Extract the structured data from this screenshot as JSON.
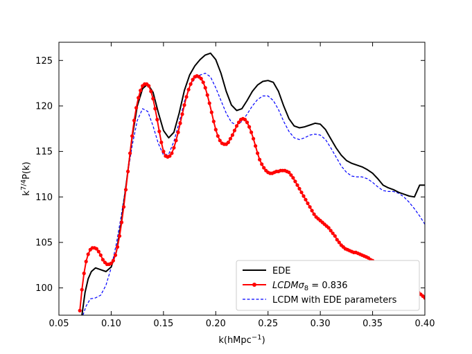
{
  "chart_data": {
    "type": "line",
    "xlabel_base": "k(hMpc",
    "xlabel_sup": "−1",
    "xlabel_close": ")",
    "ylabel_base": "k",
    "ylabel_sup": "7/4",
    "ylabel_rest": "P(k)",
    "xlim": [
      0.05,
      0.4
    ],
    "ylim": [
      97,
      127
    ],
    "xticks": [
      0.05,
      0.1,
      0.15,
      0.2,
      0.25,
      0.3,
      0.35,
      0.4
    ],
    "xtick_labels": [
      "0.05",
      "0.10",
      "0.15",
      "0.20",
      "0.25",
      "0.30",
      "0.35",
      "0.40"
    ],
    "yticks": [
      100,
      105,
      110,
      115,
      120,
      125
    ],
    "ytick_labels": [
      "100",
      "105",
      "110",
      "115",
      "120",
      "125"
    ],
    "grid": false,
    "legend_position": "lower-right",
    "series": [
      {
        "name": "EDE",
        "legend_label": "EDE",
        "color": "#000000",
        "style": "solid",
        "markers": false,
        "x": [
          0.072,
          0.075,
          0.078,
          0.081,
          0.085,
          0.09,
          0.095,
          0.1,
          0.105,
          0.11,
          0.115,
          0.12,
          0.125,
          0.13,
          0.135,
          0.14,
          0.145,
          0.15,
          0.155,
          0.16,
          0.165,
          0.17,
          0.175,
          0.18,
          0.185,
          0.19,
          0.195,
          0.2,
          0.205,
          0.21,
          0.215,
          0.22,
          0.225,
          0.23,
          0.235,
          0.24,
          0.245,
          0.25,
          0.255,
          0.26,
          0.265,
          0.27,
          0.275,
          0.28,
          0.285,
          0.29,
          0.295,
          0.3,
          0.305,
          0.31,
          0.315,
          0.32,
          0.325,
          0.33,
          0.335,
          0.34,
          0.345,
          0.35,
          0.355,
          0.36,
          0.365,
          0.37,
          0.375,
          0.38,
          0.385,
          0.39,
          0.395,
          0.4
        ],
        "y": [
          97.0,
          99.5,
          101.0,
          101.8,
          102.2,
          102.0,
          101.8,
          102.3,
          104.0,
          107.5,
          112.0,
          116.5,
          120.0,
          121.9,
          122.4,
          121.5,
          119.3,
          117.3,
          116.5,
          117.1,
          119.2,
          121.7,
          123.4,
          124.4,
          125.1,
          125.6,
          125.8,
          125.1,
          123.6,
          121.6,
          120.1,
          119.5,
          119.7,
          120.6,
          121.6,
          122.3,
          122.7,
          122.8,
          122.6,
          121.6,
          120.0,
          118.6,
          117.8,
          117.6,
          117.7,
          117.9,
          118.1,
          118.0,
          117.4,
          116.4,
          115.4,
          114.6,
          114.0,
          113.7,
          113.5,
          113.3,
          113.0,
          112.6,
          112.0,
          111.3,
          111.0,
          110.8,
          110.5,
          110.3,
          110.1,
          110.0,
          111.3,
          111.3
        ]
      },
      {
        "name": "LCDM σ8 = 0.836",
        "legend_label": "LCDMσ",
        "legend_sub": "8",
        "legend_rest": " = 0.836",
        "color": "#ff0000",
        "style": "solid",
        "markers": true,
        "x": [
          0.07,
          0.072,
          0.074,
          0.076,
          0.078,
          0.08,
          0.082,
          0.084,
          0.086,
          0.088,
          0.09,
          0.092,
          0.094,
          0.096,
          0.098,
          0.1,
          0.102,
          0.104,
          0.106,
          0.108,
          0.11,
          0.112,
          0.114,
          0.116,
          0.118,
          0.12,
          0.122,
          0.124,
          0.126,
          0.128,
          0.13,
          0.132,
          0.134,
          0.136,
          0.138,
          0.14,
          0.142,
          0.144,
          0.146,
          0.148,
          0.15,
          0.152,
          0.154,
          0.156,
          0.158,
          0.16,
          0.162,
          0.164,
          0.166,
          0.168,
          0.17,
          0.172,
          0.174,
          0.176,
          0.178,
          0.18,
          0.182,
          0.184,
          0.186,
          0.188,
          0.19,
          0.192,
          0.194,
          0.196,
          0.198,
          0.2,
          0.202,
          0.204,
          0.206,
          0.208,
          0.21,
          0.212,
          0.214,
          0.216,
          0.218,
          0.22,
          0.222,
          0.224,
          0.226,
          0.228,
          0.23,
          0.232,
          0.234,
          0.236,
          0.238,
          0.24,
          0.242,
          0.244,
          0.246,
          0.248,
          0.25,
          0.252,
          0.254,
          0.256,
          0.258,
          0.26,
          0.262,
          0.264,
          0.266,
          0.268,
          0.27,
          0.272,
          0.274,
          0.276,
          0.278,
          0.28,
          0.282,
          0.284,
          0.286,
          0.288,
          0.29,
          0.292,
          0.294,
          0.296,
          0.298,
          0.3,
          0.302,
          0.304,
          0.306,
          0.308,
          0.31,
          0.312,
          0.314,
          0.316,
          0.318,
          0.32,
          0.322,
          0.324,
          0.326,
          0.328,
          0.33,
          0.332,
          0.334,
          0.336,
          0.338,
          0.34,
          0.342,
          0.344,
          0.346,
          0.348,
          0.35,
          0.352,
          0.354,
          0.356,
          0.358,
          0.36,
          0.362,
          0.364,
          0.366,
          0.368,
          0.37,
          0.372,
          0.374,
          0.376,
          0.378,
          0.38,
          0.382,
          0.384,
          0.386,
          0.388,
          0.39,
          0.392,
          0.394,
          0.396,
          0.398,
          0.4
        ],
        "y": [
          97.5,
          99.8,
          101.6,
          102.9,
          103.7,
          104.2,
          104.4,
          104.4,
          104.3,
          104.0,
          103.6,
          103.1,
          102.8,
          102.6,
          102.6,
          102.7,
          103.0,
          103.6,
          104.5,
          105.7,
          107.2,
          108.9,
          110.8,
          112.8,
          114.8,
          116.7,
          118.4,
          119.8,
          120.9,
          121.7,
          122.2,
          122.4,
          122.4,
          122.2,
          121.6,
          120.8,
          119.7,
          118.5,
          117.2,
          116.0,
          115.0,
          114.5,
          114.4,
          114.5,
          114.8,
          115.4,
          116.2,
          117.1,
          118.1,
          119.1,
          120.1,
          121.0,
          121.8,
          122.4,
          122.9,
          123.2,
          123.3,
          123.2,
          123.0,
          122.6,
          122.0,
          121.2,
          120.3,
          119.3,
          118.3,
          117.4,
          116.7,
          116.2,
          115.9,
          115.8,
          115.8,
          116.0,
          116.4,
          116.8,
          117.3,
          117.8,
          118.2,
          118.5,
          118.6,
          118.5,
          118.2,
          117.7,
          117.1,
          116.4,
          115.6,
          114.8,
          114.1,
          113.6,
          113.2,
          112.9,
          112.7,
          112.6,
          112.6,
          112.7,
          112.8,
          112.8,
          112.9,
          112.9,
          112.9,
          112.8,
          112.7,
          112.4,
          112.1,
          111.7,
          111.3,
          110.9,
          110.5,
          110.1,
          109.7,
          109.3,
          108.9,
          108.5,
          108.1,
          107.8,
          107.6,
          107.4,
          107.2,
          107.0,
          106.8,
          106.6,
          106.3,
          106.0,
          105.7,
          105.3,
          105.0,
          104.7,
          104.5,
          104.3,
          104.2,
          104.1,
          104.0,
          103.9,
          103.9,
          103.8,
          103.7,
          103.6,
          103.5,
          103.4,
          103.3,
          103.1,
          103.0,
          102.8,
          102.7,
          102.5,
          102.4,
          102.3,
          102.2,
          102.1,
          102.0,
          101.9,
          101.8,
          101.6,
          101.5,
          101.3,
          101.1,
          100.9,
          100.7,
          100.5,
          100.3,
          100.1,
          99.9,
          99.7,
          99.5,
          99.3,
          99.1,
          98.9
        ]
      },
      {
        "name": "LCDM with EDE parameters",
        "legend_label": "LCDM with EDE parameters",
        "color": "#0000ff",
        "style": "dashed",
        "markers": false,
        "x": [
          0.073,
          0.076,
          0.08,
          0.085,
          0.09,
          0.095,
          0.1,
          0.105,
          0.11,
          0.115,
          0.12,
          0.125,
          0.13,
          0.135,
          0.14,
          0.145,
          0.15,
          0.155,
          0.16,
          0.165,
          0.17,
          0.175,
          0.18,
          0.185,
          0.19,
          0.195,
          0.2,
          0.205,
          0.21,
          0.215,
          0.22,
          0.225,
          0.23,
          0.235,
          0.24,
          0.245,
          0.25,
          0.255,
          0.26,
          0.265,
          0.27,
          0.275,
          0.28,
          0.285,
          0.29,
          0.295,
          0.3,
          0.305,
          0.31,
          0.315,
          0.32,
          0.325,
          0.33,
          0.335,
          0.34,
          0.345,
          0.35,
          0.355,
          0.36,
          0.365,
          0.37,
          0.375,
          0.38,
          0.385,
          0.39,
          0.395,
          0.4
        ],
        "y": [
          97.0,
          98.0,
          98.8,
          98.9,
          99.2,
          100.3,
          102.2,
          104.9,
          108.2,
          112.0,
          115.6,
          118.4,
          119.7,
          119.4,
          117.8,
          115.9,
          114.6,
          114.7,
          116.1,
          118.2,
          120.5,
          122.1,
          123.0,
          123.4,
          123.6,
          123.2,
          122.0,
          120.6,
          119.2,
          118.2,
          117.9,
          118.3,
          119.1,
          120.0,
          120.7,
          121.1,
          121.1,
          120.6,
          119.6,
          118.3,
          117.2,
          116.5,
          116.3,
          116.5,
          116.8,
          116.9,
          116.8,
          116.3,
          115.4,
          114.4,
          113.4,
          112.7,
          112.3,
          112.2,
          112.2,
          112.0,
          111.6,
          111.1,
          110.7,
          110.6,
          110.6,
          110.4,
          110.0,
          109.4,
          108.7,
          107.9,
          107.0
        ]
      }
    ]
  }
}
